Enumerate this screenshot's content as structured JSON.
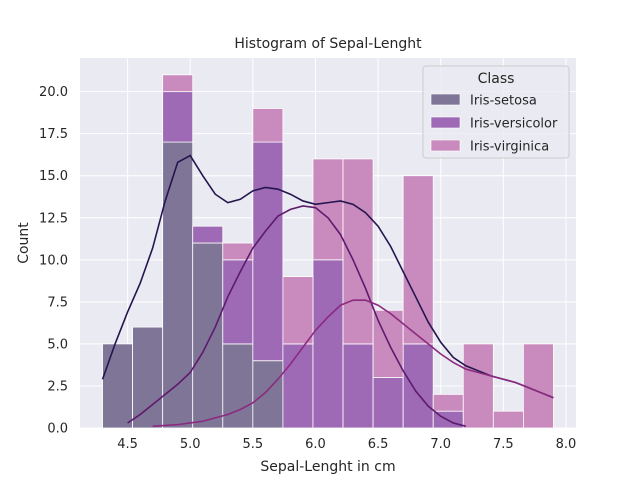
{
  "chart_data": {
    "type": "bar",
    "title": "Histogram of Sepal-Lenght",
    "xlabel": "Sepal-Lenght in cm",
    "ylabel": "Count",
    "xlim": [
      4.12,
      8.08
    ],
    "ylim": [
      0,
      22.0
    ],
    "x_ticks": [
      4.5,
      5.0,
      5.5,
      6.0,
      6.5,
      7.0,
      7.5,
      8.0
    ],
    "x_tick_labels": [
      "4.5",
      "5.0",
      "5.5",
      "6.0",
      "6.5",
      "7.0",
      "7.5",
      "8.0"
    ],
    "y_ticks": [
      0,
      2.5,
      5,
      7.5,
      10,
      12.5,
      15,
      17.5,
      20
    ],
    "y_tick_labels": [
      "0.0",
      "2.5",
      "5.0",
      "7.5",
      "10.0",
      "12.5",
      "15.0",
      "17.5",
      "20.0"
    ],
    "grid": true,
    "stacked": true,
    "bin_edges": [
      4.3,
      4.54,
      4.78,
      5.02,
      5.26,
      5.5,
      5.74,
      5.98,
      6.22,
      6.46,
      6.7,
      6.94,
      7.18,
      7.42,
      7.66,
      7.9
    ],
    "legend": {
      "title": "Class",
      "position": "top-right"
    },
    "series": [
      {
        "name": "Iris-setosa",
        "color": "#7f7596",
        "line_color": "#25154f",
        "values": [
          5,
          6,
          17,
          11,
          5,
          4,
          0,
          0,
          0,
          0,
          0,
          0,
          0,
          0,
          0
        ],
        "kde_x": [
          4.3,
          4.4,
          4.5,
          4.6,
          4.7,
          4.8,
          4.9,
          5.0,
          5.1,
          5.2,
          5.3,
          5.4,
          5.5,
          5.6,
          5.7,
          5.8,
          5.9,
          6.0,
          6.1,
          6.2,
          6.3,
          6.4,
          6.5,
          6.6,
          6.7,
          6.8,
          6.9,
          7.0,
          7.1,
          7.2,
          7.3,
          7.4,
          7.5,
          7.6,
          7.7,
          7.8,
          7.9
        ],
        "kde_y": [
          2.9,
          5.0,
          6.9,
          8.6,
          10.7,
          13.5,
          15.8,
          16.2,
          15.0,
          13.9,
          13.4,
          13.6,
          14.1,
          14.3,
          14.2,
          13.9,
          13.5,
          13.3,
          13.4,
          13.5,
          13.3,
          12.8,
          12.0,
          10.8,
          9.3,
          7.8,
          6.3,
          5.1,
          4.2,
          3.7,
          3.4,
          3.1,
          2.9,
          2.7,
          2.4,
          2.1,
          1.8
        ]
      },
      {
        "name": "Iris-versicolor",
        "color": "#9e6ab5",
        "line_color": "#5e1a6e",
        "values": [
          0,
          0,
          3,
          1,
          5,
          13,
          5,
          10,
          5,
          3,
          5,
          1,
          0,
          0,
          0
        ],
        "kde_x": [
          4.5,
          4.6,
          4.7,
          4.8,
          4.9,
          5.0,
          5.1,
          5.2,
          5.3,
          5.4,
          5.5,
          5.6,
          5.7,
          5.8,
          5.9,
          6.0,
          6.1,
          6.2,
          6.3,
          6.4,
          6.5,
          6.6,
          6.7,
          6.8,
          6.9,
          7.0,
          7.1,
          7.2
        ],
        "kde_y": [
          0.3,
          0.8,
          1.4,
          2.0,
          2.6,
          3.3,
          4.5,
          6.0,
          7.8,
          9.3,
          10.7,
          11.7,
          12.6,
          13.0,
          13.2,
          13.1,
          12.5,
          11.5,
          10.0,
          8.3,
          6.4,
          4.8,
          3.4,
          2.2,
          1.3,
          0.7,
          0.3,
          0.1
        ]
      },
      {
        "name": "Iris-virginica",
        "color": "#c98bbd",
        "line_color": "#8c2a80",
        "values": [
          0,
          0,
          1,
          0,
          1,
          2,
          4,
          6,
          11,
          4,
          10,
          1,
          5,
          1,
          5
        ],
        "kde_x": [
          4.7,
          4.8,
          4.9,
          5.0,
          5.1,
          5.2,
          5.3,
          5.4,
          5.5,
          5.6,
          5.7,
          5.8,
          5.9,
          6.0,
          6.1,
          6.2,
          6.3,
          6.4,
          6.5,
          6.6,
          6.7,
          6.8,
          6.9,
          7.0,
          7.1,
          7.2,
          7.3,
          7.4,
          7.5,
          7.6,
          7.7,
          7.8,
          7.9
        ],
        "kde_y": [
          0.1,
          0.15,
          0.2,
          0.3,
          0.4,
          0.6,
          0.8,
          1.1,
          1.5,
          2.1,
          2.9,
          3.8,
          4.8,
          5.8,
          6.6,
          7.3,
          7.6,
          7.6,
          7.3,
          6.8,
          6.2,
          5.6,
          5.0,
          4.4,
          3.9,
          3.5,
          3.3,
          3.1,
          2.9,
          2.7,
          2.4,
          2.1,
          1.8
        ]
      }
    ]
  }
}
